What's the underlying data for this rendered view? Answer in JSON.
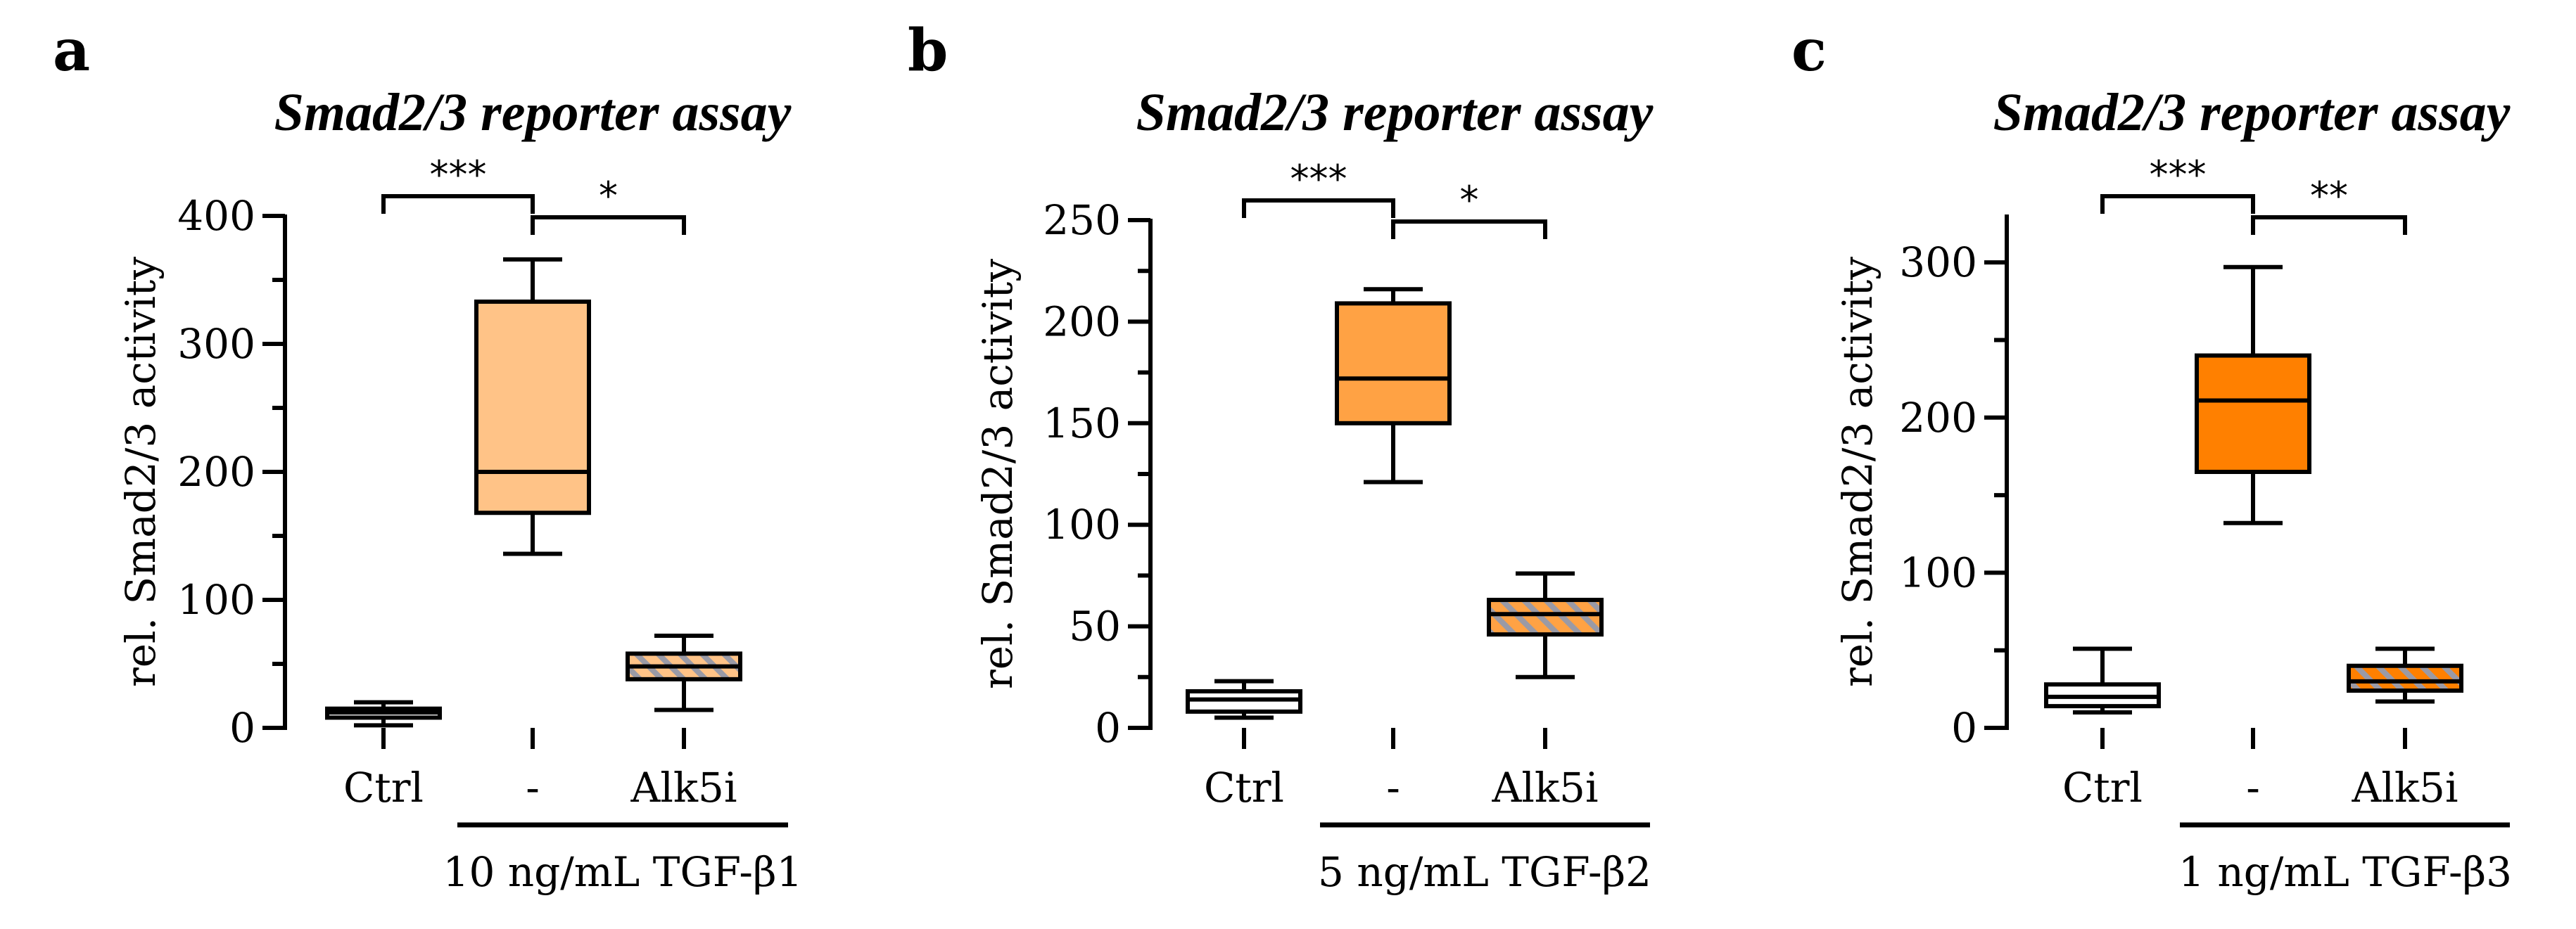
{
  "chart_data": [
    {
      "type": "box",
      "panel_label": "a",
      "title": "Smad2/3 reporter assay",
      "ylabel": "rel. Smad2/3 activity",
      "ylim": [
        0,
        400
      ],
      "yticks": [
        0,
        100,
        200,
        300,
        400
      ],
      "categories": [
        "Ctrl",
        "-",
        "Alk5i"
      ],
      "treatment_label": "10 ng/mL TGF-β1",
      "boxes": [
        {
          "category": "Ctrl",
          "min": 2,
          "q1": 8,
          "median": 12,
          "q3": 15,
          "max": 20,
          "color": "#ffffff",
          "pattern": "none"
        },
        {
          "category": "-",
          "min": 136,
          "q1": 168,
          "median": 200,
          "q3": 333,
          "max": 366,
          "color": "#ffc387",
          "pattern": "none"
        },
        {
          "category": "Alk5i",
          "min": 14,
          "q1": 38,
          "median": 48,
          "q3": 58,
          "max": 72,
          "color": "#ffc387",
          "pattern": "hatch"
        }
      ],
      "significance": [
        {
          "from": "Ctrl",
          "to": "-",
          "label": "***"
        },
        {
          "from": "-",
          "to": "Alk5i",
          "label": "*"
        }
      ]
    },
    {
      "type": "box",
      "panel_label": "b",
      "title": "Smad2/3 reporter assay",
      "ylabel": "rel. Smad2/3 activity",
      "ylim": [
        0,
        250
      ],
      "yticks": [
        0,
        50,
        100,
        150,
        200,
        250
      ],
      "categories": [
        "Ctrl",
        "-",
        "Alk5i"
      ],
      "treatment_label": "5 ng/mL TGF-β2",
      "boxes": [
        {
          "category": "Ctrl",
          "min": 5,
          "q1": 8,
          "median": 14,
          "q3": 18,
          "max": 23,
          "color": "#ffffff",
          "pattern": "none"
        },
        {
          "category": "-",
          "min": 121,
          "q1": 150,
          "median": 172,
          "q3": 209,
          "max": 216,
          "color": "#ffa244",
          "pattern": "none"
        },
        {
          "category": "Alk5i",
          "min": 25,
          "q1": 46,
          "median": 56,
          "q3": 63,
          "max": 76,
          "color": "#ffa244",
          "pattern": "hatch"
        }
      ],
      "significance": [
        {
          "from": "Ctrl",
          "to": "-",
          "label": "***"
        },
        {
          "from": "-",
          "to": "Alk5i",
          "label": "*"
        }
      ]
    },
    {
      "type": "box",
      "panel_label": "c",
      "title": "Smad2/3 reporter assay",
      "ylabel": "rel. Smad2/3 activity",
      "ylim": [
        0,
        330
      ],
      "yticks": [
        0,
        100,
        200,
        300
      ],
      "categories": [
        "Ctrl",
        "-",
        "Alk5i"
      ],
      "treatment_label": "1 ng/mL TGF-β3",
      "boxes": [
        {
          "category": "Ctrl",
          "min": 10,
          "q1": 14,
          "median": 20,
          "q3": 28,
          "max": 51,
          "color": "#ffffff",
          "pattern": "none"
        },
        {
          "category": "-",
          "min": 132,
          "q1": 165,
          "median": 211,
          "q3": 240,
          "max": 297,
          "color": "#ff8000",
          "pattern": "none"
        },
        {
          "category": "Alk5i",
          "min": 17,
          "q1": 24,
          "median": 30,
          "q3": 40,
          "max": 51,
          "color": "#ff8000",
          "pattern": "hatch"
        }
      ],
      "significance": [
        {
          "from": "Ctrl",
          "to": "-",
          "label": "***"
        },
        {
          "from": "-",
          "to": "Alk5i",
          "label": "**"
        }
      ]
    }
  ]
}
